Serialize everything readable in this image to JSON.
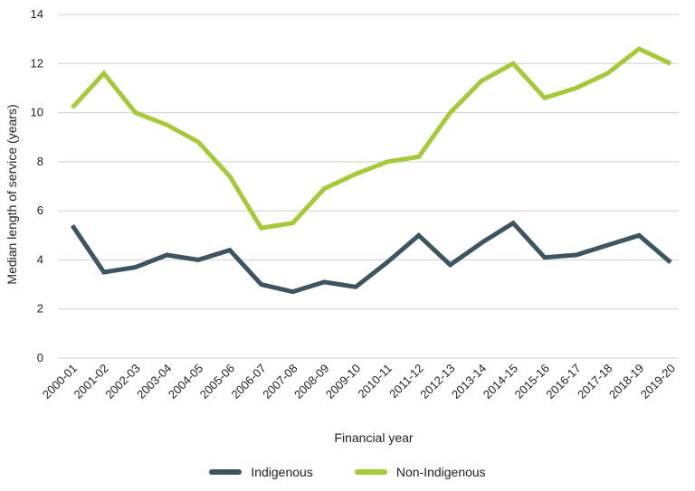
{
  "chart_data": {
    "type": "line",
    "title": "",
    "xlabel": "Financial year",
    "ylabel": "Median length of service (years)",
    "ylim": [
      0,
      14
    ],
    "yticks": [
      0,
      2,
      4,
      6,
      8,
      10,
      12,
      14
    ],
    "grid": "horizontal",
    "legend_position": "bottom-center",
    "categories": [
      "2000-01",
      "2001-02",
      "2002-03",
      "2003-04",
      "2004-05",
      "2005-06",
      "2006-07",
      "2007-08",
      "2008-09",
      "2009-10",
      "2010-11",
      "2011-12",
      "2012-13",
      "2013-14",
      "2014-15",
      "2015-16",
      "2016-17",
      "2017-18",
      "2018-19",
      "2019-20"
    ],
    "series": [
      {
        "name": "Indigenous",
        "color": "#3d5560",
        "values": [
          5.4,
          3.5,
          3.7,
          4.2,
          4.0,
          4.4,
          3.0,
          2.7,
          3.1,
          2.9,
          3.9,
          5.0,
          3.8,
          4.7,
          5.5,
          4.1,
          4.2,
          4.6,
          5.0,
          3.9
        ]
      },
      {
        "name": "Non-Indigenous",
        "color": "#a6c93a",
        "values": [
          10.2,
          11.6,
          10.0,
          9.5,
          8.8,
          7.4,
          5.3,
          5.5,
          6.9,
          7.5,
          8.0,
          8.2,
          10.0,
          11.3,
          12.0,
          10.6,
          11.0,
          11.6,
          12.6,
          12.0
        ]
      }
    ]
  }
}
